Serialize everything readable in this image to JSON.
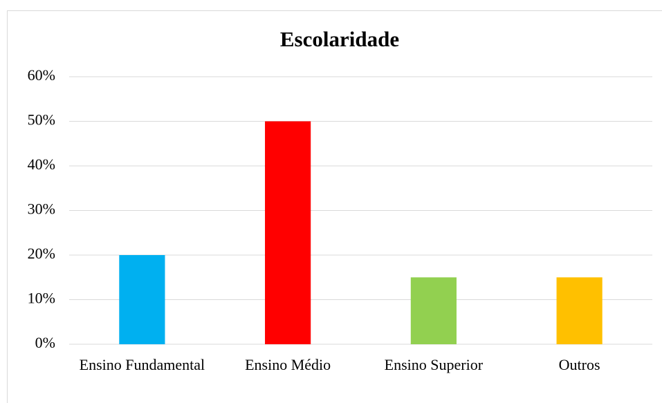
{
  "chart_data": {
    "type": "bar",
    "title": "Escolaridade",
    "categories": [
      "Ensino Fundamental",
      "Ensino Médio",
      "Ensino Superior",
      "Outros"
    ],
    "values": [
      20,
      50,
      15,
      15
    ],
    "colors": [
      "#00b0f0",
      "#ff0000",
      "#92d050",
      "#ffc000"
    ],
    "ylim": [
      0,
      60
    ],
    "yticks": [
      {
        "value": 0,
        "label": "0%"
      },
      {
        "value": 10,
        "label": "10%"
      },
      {
        "value": 20,
        "label": "20%"
      },
      {
        "value": 30,
        "label": "30%"
      },
      {
        "value": 40,
        "label": "40%"
      },
      {
        "value": 50,
        "label": "50%"
      },
      {
        "value": 60,
        "label": "60%"
      }
    ],
    "grid": true
  }
}
